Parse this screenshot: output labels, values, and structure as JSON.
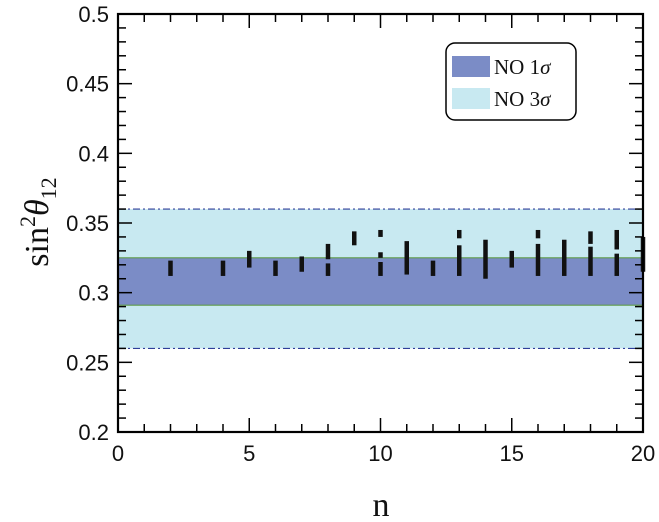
{
  "chart_data": {
    "type": "scatter",
    "xlabel": "n",
    "ylabel": {
      "base": "sin",
      "sup": "2",
      "greek": "θ",
      "sub": "12"
    },
    "xlim": [
      0,
      20
    ],
    "ylim": [
      0.2,
      0.5
    ],
    "xticks": [
      0,
      5,
      10,
      15,
      20
    ],
    "xtick_labels": [
      "0",
      "5",
      "10",
      "15",
      "20"
    ],
    "yticks": [
      0.2,
      0.25,
      0.3,
      0.35,
      0.4,
      0.45,
      0.5
    ],
    "ytick_labels": [
      "0.2",
      "0.25",
      "0.3",
      "0.35",
      "0.4",
      "0.45",
      "0.5"
    ],
    "x_minor_step": 1,
    "y_minor_step": 0.01,
    "grid": false,
    "legend_position": "top-right",
    "bands": [
      {
        "name": "NO 3σ",
        "label_text": "NO 3",
        "label_greek": "σ",
        "y0": 0.26,
        "y1": 0.36,
        "color": "#c8e9f1",
        "edge_color": "#2f3f9a",
        "edge_style": "dash-dot"
      },
      {
        "name": "NO 1σ",
        "label_text": "NO 1",
        "label_greek": "σ",
        "y0": 0.291,
        "y1": 0.325,
        "color": "#7b8cc6",
        "edge_color": "#5f9a4a",
        "edge_style": "solid"
      }
    ],
    "series": [
      {
        "marker": "vertical-segment",
        "color": "#111111",
        "segments": [
          {
            "x": 2,
            "y_low": 0.312,
            "y_high": 0.323
          },
          {
            "x": 4,
            "y_low": 0.312,
            "y_high": 0.323
          },
          {
            "x": 5,
            "y_low": 0.318,
            "y_high": 0.33
          },
          {
            "x": 6,
            "y_low": 0.312,
            "y_high": 0.323
          },
          {
            "x": 7,
            "y_low": 0.315,
            "y_high": 0.326
          },
          {
            "x": 8,
            "y_low": 0.312,
            "y_high": 0.321
          },
          {
            "x": 8,
            "y_low": 0.324,
            "y_high": 0.335
          },
          {
            "x": 9,
            "y_low": 0.334,
            "y_high": 0.344
          },
          {
            "x": 10,
            "y_low": 0.312,
            "y_high": 0.322
          },
          {
            "x": 10,
            "y_low": 0.325,
            "y_high": 0.329
          },
          {
            "x": 10,
            "y_low": 0.34,
            "y_high": 0.345
          },
          {
            "x": 11,
            "y_low": 0.313,
            "y_high": 0.337
          },
          {
            "x": 12,
            "y_low": 0.312,
            "y_high": 0.323
          },
          {
            "x": 13,
            "y_low": 0.312,
            "y_high": 0.334
          },
          {
            "x": 13,
            "y_low": 0.339,
            "y_high": 0.345
          },
          {
            "x": 14,
            "y_low": 0.31,
            "y_high": 0.338
          },
          {
            "x": 15,
            "y_low": 0.318,
            "y_high": 0.33
          },
          {
            "x": 16,
            "y_low": 0.312,
            "y_high": 0.335
          },
          {
            "x": 16,
            "y_low": 0.339,
            "y_high": 0.345
          },
          {
            "x": 17,
            "y_low": 0.312,
            "y_high": 0.338
          },
          {
            "x": 18,
            "y_low": 0.312,
            "y_high": 0.333
          },
          {
            "x": 18,
            "y_low": 0.335,
            "y_high": 0.344
          },
          {
            "x": 19,
            "y_low": 0.312,
            "y_high": 0.328
          },
          {
            "x": 19,
            "y_low": 0.331,
            "y_high": 0.345
          },
          {
            "x": 20,
            "y_low": 0.315,
            "y_high": 0.34
          }
        ]
      }
    ]
  }
}
